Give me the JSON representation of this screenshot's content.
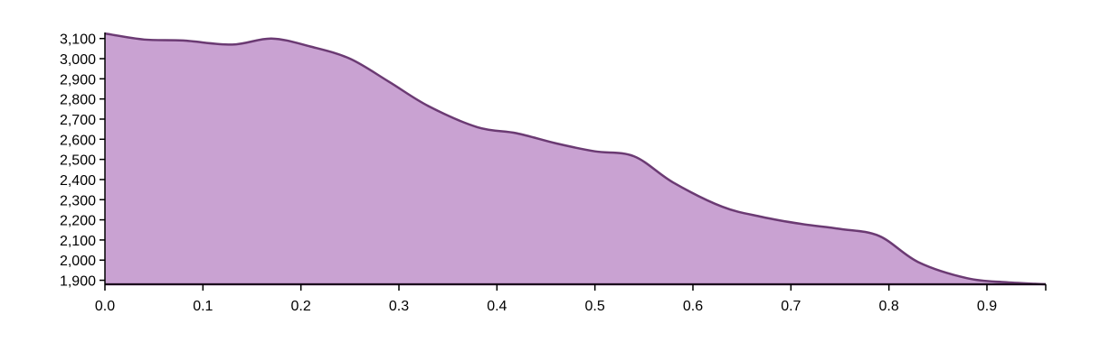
{
  "chart_data": {
    "type": "area",
    "title": "",
    "xlabel": "",
    "ylabel": "",
    "xlim": [
      0,
      0.96
    ],
    "ylim": [
      1880,
      3130
    ],
    "x_ticks": [
      0.0,
      0.1,
      0.2,
      0.3,
      0.4,
      0.5,
      0.6,
      0.7,
      0.8,
      0.9
    ],
    "x_tick_labels": [
      "0.0",
      "0.1",
      "0.2",
      "0.3",
      "0.4",
      "0.5",
      "0.6",
      "0.7",
      "0.8",
      "0.9"
    ],
    "y_ticks": [
      1900,
      2000,
      2100,
      2200,
      2300,
      2400,
      2500,
      2600,
      2700,
      2800,
      2900,
      3000,
      3100
    ],
    "y_tick_labels": [
      "1,900",
      "2,000",
      "2,100",
      "2,200",
      "2,300",
      "2,400",
      "2,500",
      "2,600",
      "2,700",
      "2,800",
      "2,900",
      "3,000",
      "3,100"
    ],
    "grid": false,
    "legend": "none",
    "series": [
      {
        "x": [
          0.0,
          0.04,
          0.08,
          0.13,
          0.17,
          0.21,
          0.25,
          0.29,
          0.33,
          0.38,
          0.42,
          0.46,
          0.5,
          0.54,
          0.58,
          0.63,
          0.67,
          0.71,
          0.75,
          0.79,
          0.83,
          0.88,
          0.92,
          0.96
        ],
        "values": [
          3125,
          3095,
          3090,
          3070,
          3100,
          3060,
          3000,
          2885,
          2765,
          2660,
          2630,
          2580,
          2540,
          2515,
          2385,
          2265,
          2215,
          2180,
          2155,
          2120,
          1990,
          1910,
          1890,
          1880
        ]
      }
    ],
    "colors": {
      "fill": "#c9a2d2",
      "line": "#6b3a73",
      "axis": "#000000"
    }
  }
}
